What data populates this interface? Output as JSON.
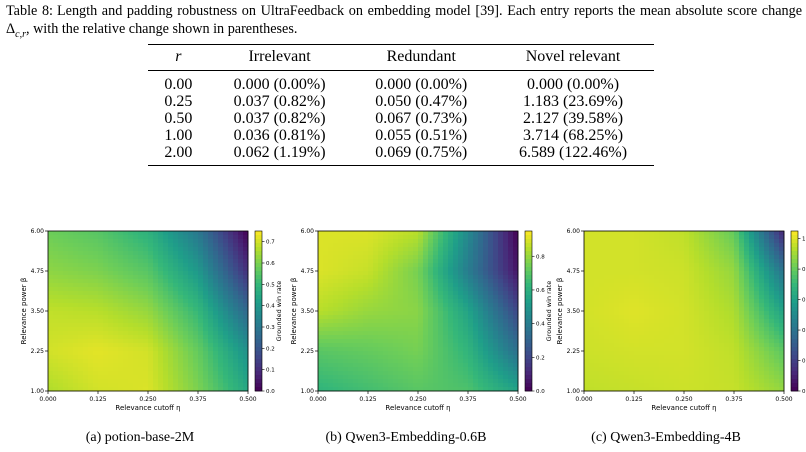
{
  "caption": {
    "label": "Table 8:",
    "text": "Length and padding robustness on UltraFeedback on embedding model [39]. Each entry reports the mean absolute score change Δ",
    "subscript": "c,r",
    "text_end": ", with the relative change shown in parentheses."
  },
  "table": {
    "headers": [
      "r",
      "Irrelevant",
      "Redundant",
      "Novel relevant"
    ],
    "rows": [
      [
        "0.00",
        "0.000 (0.00%)",
        "0.000 (0.00%)",
        "0.000 (0.00%)"
      ],
      [
        "0.25",
        "0.037 (0.82%)",
        "0.050 (0.47%)",
        "1.183 (23.69%)"
      ],
      [
        "0.50",
        "0.037 (0.82%)",
        "0.067 (0.73%)",
        "2.127 (39.58%)"
      ],
      [
        "1.00",
        "0.036 (0.81%)",
        "0.055 (0.51%)",
        "3.714 (68.25%)"
      ],
      [
        "2.00",
        "0.062 (1.19%)",
        "0.069 (0.75%)",
        "6.589 (122.46%)"
      ]
    ]
  },
  "chart_data": [
    {
      "type": "heatmap",
      "caption": "(a) potion-base-2M",
      "xlabel": "Relevance cutoff η",
      "ylabel": "Relevance power β",
      "colorbar_label": "Grounded win rate",
      "xticks": [
        "0.000",
        "0.125",
        "0.250",
        "0.375",
        "0.500"
      ],
      "yticks": [
        "1.00",
        "2.25",
        "3.50",
        "4.75",
        "6.00"
      ],
      "cticks": [
        "0.0",
        "0.1",
        "0.2",
        "0.3",
        "0.4",
        "0.5",
        "0.6",
        "0.7"
      ],
      "xlim": [
        0,
        0.5
      ],
      "ylim": [
        1,
        6
      ],
      "clim": [
        0,
        0.75
      ],
      "colormap": "viridis",
      "x": [
        0,
        0.125,
        0.25,
        0.375,
        0.5
      ],
      "y": [
        6.0,
        4.75,
        3.5,
        2.25,
        1.0
      ],
      "z": [
        [
          0.58,
          0.55,
          0.48,
          0.3,
          0.0
        ],
        [
          0.62,
          0.6,
          0.55,
          0.4,
          0.1
        ],
        [
          0.68,
          0.67,
          0.63,
          0.5,
          0.25
        ],
        [
          0.7,
          0.72,
          0.7,
          0.57,
          0.38
        ],
        [
          0.66,
          0.7,
          0.71,
          0.6,
          0.45
        ]
      ]
    },
    {
      "type": "heatmap",
      "caption": "(b) Qwen3-Embedding-0.6B",
      "xlabel": "Relevance cutoff η",
      "ylabel": "Relevance power β",
      "colorbar_label": "Grounded win rate",
      "xticks": [
        "0.000",
        "0.125",
        "0.250",
        "0.375",
        "0.500"
      ],
      "yticks": [
        "1.00",
        "2.25",
        "3.50",
        "4.75",
        "6.00"
      ],
      "cticks": [
        "0.0",
        "0.2",
        "0.4",
        "0.6",
        "0.8"
      ],
      "xlim": [
        0,
        0.5
      ],
      "ylim": [
        1,
        6
      ],
      "clim": [
        0,
        0.95
      ],
      "colormap": "viridis",
      "x": [
        0,
        0.125,
        0.25,
        0.375,
        0.5
      ],
      "y": [
        6.0,
        4.75,
        3.5,
        2.25,
        1.0
      ],
      "z": [
        [
          0.9,
          0.9,
          0.85,
          0.45,
          0.0
        ],
        [
          0.9,
          0.87,
          0.75,
          0.4,
          0.05
        ],
        [
          0.85,
          0.8,
          0.78,
          0.55,
          0.2
        ],
        [
          0.7,
          0.72,
          0.75,
          0.62,
          0.35
        ],
        [
          0.62,
          0.66,
          0.7,
          0.68,
          0.55
        ]
      ]
    },
    {
      "type": "heatmap",
      "caption": "(c) Qwen3-Embedding-4B",
      "xlabel": "Relevance cutoff η",
      "ylabel": "Relevance power β",
      "colorbar_label": "Grounded win rate",
      "xticks": [
        "0.000",
        "0.125",
        "0.250",
        "0.375",
        "0.500"
      ],
      "yticks": [
        "1.00",
        "2.25",
        "3.50",
        "4.75",
        "6.00"
      ],
      "cticks": [
        "0.0",
        "0.2",
        "0.4",
        "0.6",
        "0.8",
        "1.0"
      ],
      "xlim": [
        0,
        0.5
      ],
      "ylim": [
        1,
        6
      ],
      "clim": [
        0,
        1.05
      ],
      "colormap": "viridis",
      "x": [
        0,
        0.125,
        0.25,
        0.375,
        0.5
      ],
      "y": [
        6.0,
        4.75,
        3.5,
        2.25,
        1.0
      ],
      "z": [
        [
          0.98,
          0.98,
          0.95,
          0.8,
          0.1
        ],
        [
          0.98,
          0.98,
          0.97,
          0.88,
          0.4
        ],
        [
          0.98,
          1.0,
          0.98,
          0.92,
          0.6
        ],
        [
          0.97,
          0.98,
          0.98,
          0.95,
          0.78
        ],
        [
          0.95,
          0.96,
          0.97,
          0.96,
          0.88
        ]
      ]
    }
  ]
}
